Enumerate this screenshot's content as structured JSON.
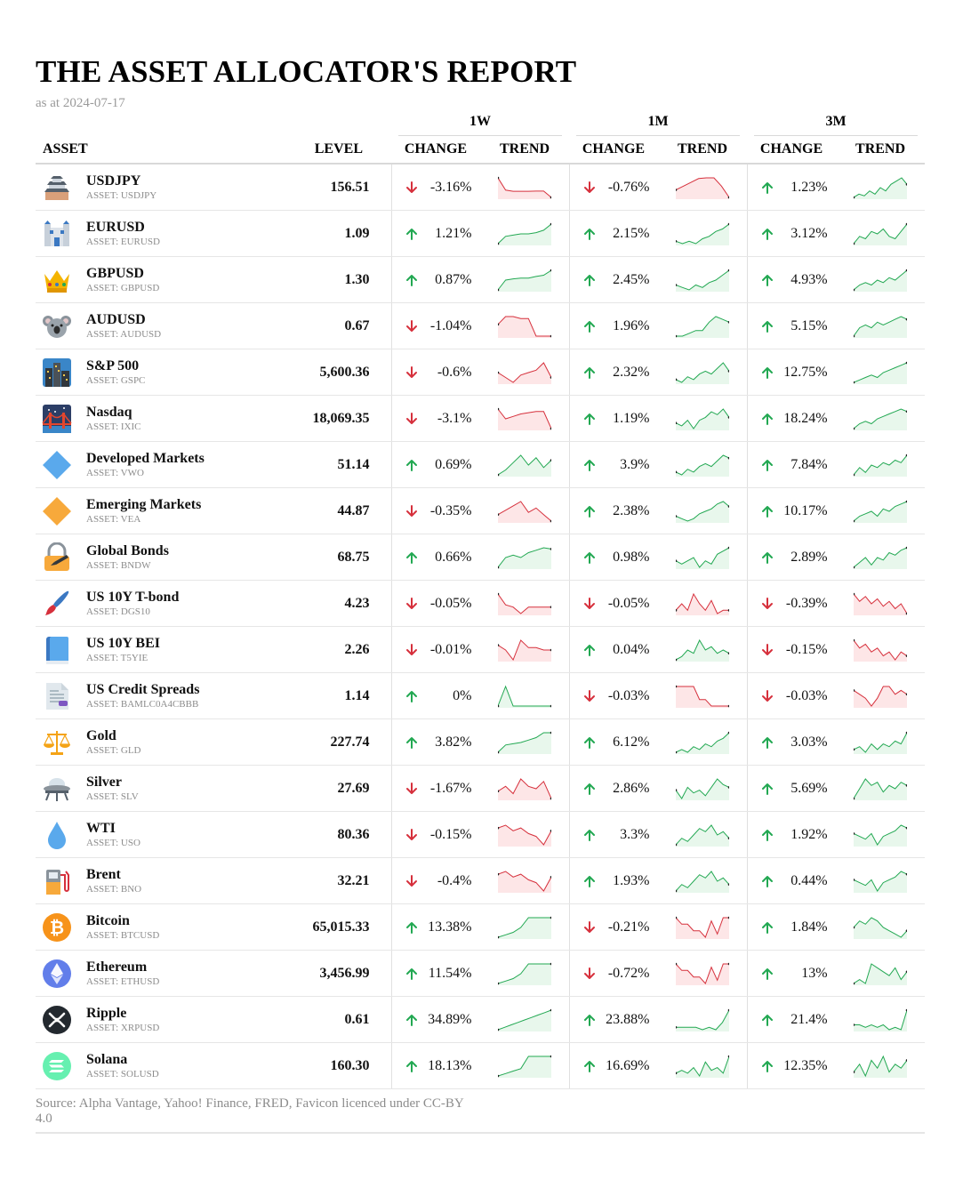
{
  "report": {
    "title": "THE ASSET ALLOCATOR'S REPORT",
    "subtitle": "as at 2024-07-17",
    "source": "Source: Alpha Vantage, Yahoo! Finance, FRED, Favicon licenced under CC-BY 4.0"
  },
  "columns": {
    "asset": "ASSET",
    "level": "LEVEL",
    "periods": [
      "1W",
      "1M",
      "3M"
    ],
    "change": "CHANGE",
    "trend": "TREND"
  },
  "colors": {
    "up": "#22a852",
    "up_fill": "#e8f7ec",
    "down": "#d6303c",
    "down_fill": "#fde6e7",
    "muted": "#8c8c8c"
  },
  "rows": [
    {
      "name": "USDJPY",
      "ticker": "ASSET: USDJPY",
      "icon": "japanese-castle-icon",
      "level": "156.51",
      "changes": [
        {
          "text": "-3.16%",
          "dir": "down"
        },
        {
          "text": "-0.76%",
          "dir": "down"
        },
        {
          "text": "1.23%",
          "dir": "up"
        }
      ],
      "trends": [
        [
          10,
          5,
          4.5,
          4.5,
          4.5,
          4.6,
          4.6,
          2
        ],
        [
          6,
          7,
          8,
          9,
          9.2,
          9.2,
          7,
          4
        ],
        [
          3,
          4,
          3.5,
          5,
          4,
          6,
          5,
          7,
          8,
          9,
          7
        ]
      ]
    },
    {
      "name": "EURUSD",
      "ticker": "ASSET: EURUSD",
      "icon": "european-castle-icon",
      "level": "1.09",
      "changes": [
        {
          "text": "1.21%",
          "dir": "up"
        },
        {
          "text": "2.15%",
          "dir": "up"
        },
        {
          "text": "3.12%",
          "dir": "up"
        }
      ],
      "trends": [
        [
          2,
          5,
          5.5,
          6,
          6,
          6.5,
          7.5,
          10
        ],
        [
          3,
          2,
          3,
          2,
          4,
          5,
          7,
          8,
          10
        ],
        [
          2,
          5,
          4,
          7,
          6,
          8,
          5,
          4,
          7,
          10
        ]
      ]
    },
    {
      "name": "GBPUSD",
      "ticker": "ASSET: GBPUSD",
      "icon": "crown-icon",
      "level": "1.30",
      "changes": [
        {
          "text": "0.87%",
          "dir": "up"
        },
        {
          "text": "2.45%",
          "dir": "up"
        },
        {
          "text": "4.93%",
          "dir": "up"
        }
      ],
      "trends": [
        [
          2,
          6,
          6.5,
          6.8,
          6.8,
          7.5,
          8,
          10
        ],
        [
          4,
          3,
          2,
          4,
          3,
          5,
          6,
          8,
          10
        ],
        [
          2,
          4,
          5,
          4,
          6,
          5,
          7,
          6,
          8,
          10
        ]
      ]
    },
    {
      "name": "AUDUSD",
      "ticker": "ASSET: AUDUSD",
      "icon": "koala-icon",
      "level": "0.67",
      "changes": [
        {
          "text": "-1.04%",
          "dir": "down"
        },
        {
          "text": "1.96%",
          "dir": "up"
        },
        {
          "text": "5.15%",
          "dir": "up"
        }
      ],
      "trends": [
        [
          8,
          10,
          10,
          9.5,
          9.5,
          5,
          5,
          5
        ],
        [
          3,
          3,
          4,
          5,
          5,
          8,
          10,
          9,
          8
        ],
        [
          2,
          5,
          6,
          5,
          7,
          6,
          7,
          8,
          9,
          8
        ]
      ]
    },
    {
      "name": "S&P 500",
      "ticker": "ASSET: GSPC",
      "icon": "night-city-icon",
      "level": "5,600.36",
      "changes": [
        {
          "text": "-0.6%",
          "dir": "down"
        },
        {
          "text": "2.32%",
          "dir": "up"
        },
        {
          "text": "12.75%",
          "dir": "up"
        }
      ],
      "trends": [
        [
          6,
          4,
          2,
          5,
          6,
          7,
          10,
          4
        ],
        [
          4,
          3,
          5,
          4,
          6,
          7,
          6,
          8,
          10,
          7
        ],
        [
          2,
          3,
          4,
          5,
          4,
          6,
          7,
          8,
          9,
          10
        ]
      ]
    },
    {
      "name": "Nasdaq",
      "ticker": "ASSET: IXIC",
      "icon": "bridge-night-icon",
      "level": "18,069.35",
      "changes": [
        {
          "text": "-3.1%",
          "dir": "down"
        },
        {
          "text": "1.19%",
          "dir": "up"
        },
        {
          "text": "18.24%",
          "dir": "up"
        }
      ],
      "trends": [
        [
          10,
          6,
          7,
          8,
          8.5,
          9,
          9,
          2
        ],
        [
          5,
          4,
          6,
          3,
          6,
          7,
          9,
          8,
          10,
          7
        ],
        [
          2,
          4,
          5,
          4,
          6,
          7,
          8,
          9,
          10,
          9
        ]
      ]
    },
    {
      "name": "Developed Markets",
      "ticker": "ASSET: VWO",
      "icon": "blue-diamond-icon",
      "level": "51.14",
      "changes": [
        {
          "text": "0.69%",
          "dir": "up"
        },
        {
          "text": "3.9%",
          "dir": "up"
        },
        {
          "text": "7.84%",
          "dir": "up"
        }
      ],
      "trends": [
        [
          2,
          4,
          7,
          10,
          6,
          9,
          5,
          8
        ],
        [
          3,
          2,
          4,
          3,
          5,
          6,
          5,
          7,
          9,
          8
        ],
        [
          2,
          5,
          3,
          6,
          5,
          7,
          6,
          8,
          7,
          10
        ]
      ]
    },
    {
      "name": "Emerging Markets",
      "ticker": "ASSET: VEA",
      "icon": "orange-diamond-icon",
      "level": "44.87",
      "changes": [
        {
          "text": "-0.35%",
          "dir": "down"
        },
        {
          "text": "2.38%",
          "dir": "up"
        },
        {
          "text": "10.17%",
          "dir": "up"
        }
      ],
      "trends": [
        [
          4,
          6,
          8,
          10,
          5,
          7,
          4,
          1
        ],
        [
          4,
          3,
          2,
          3,
          5,
          6,
          7,
          9,
          10,
          8
        ],
        [
          2,
          4,
          5,
          6,
          4,
          7,
          6,
          8,
          9,
          10
        ]
      ]
    },
    {
      "name": "Global Bonds",
      "ticker": "ASSET: BNDW",
      "icon": "lock-pen-icon",
      "level": "68.75",
      "changes": [
        {
          "text": "0.66%",
          "dir": "up"
        },
        {
          "text": "0.98%",
          "dir": "up"
        },
        {
          "text": "2.89%",
          "dir": "up"
        }
      ],
      "trends": [
        [
          2,
          6,
          7,
          6,
          8,
          9,
          10,
          9.5
        ],
        [
          6,
          5,
          6,
          7,
          4,
          6,
          5,
          8,
          9,
          10
        ],
        [
          2,
          4,
          6,
          3,
          6,
          5,
          8,
          7,
          9,
          10
        ]
      ]
    },
    {
      "name": "US 10Y T-bond",
      "ticker": "ASSET: DGS10",
      "icon": "paintbrush-icon",
      "level": "4.23",
      "changes": [
        {
          "text": "-0.05%",
          "dir": "down"
        },
        {
          "text": "-0.05%",
          "dir": "down"
        },
        {
          "text": "-0.39%",
          "dir": "down"
        }
      ],
      "trends": [
        [
          10,
          5,
          4,
          1,
          4,
          4,
          4,
          4
        ],
        [
          4,
          6,
          4,
          9,
          6,
          4,
          7,
          3,
          4,
          4
        ],
        [
          10,
          7,
          9,
          6,
          8,
          5,
          7,
          4,
          6,
          2
        ]
      ]
    },
    {
      "name": "US 10Y BEI",
      "ticker": "ASSET: T5YIE",
      "icon": "blue-book-icon",
      "level": "2.26",
      "changes": [
        {
          "text": "-0.01%",
          "dir": "down"
        },
        {
          "text": "0.04%",
          "dir": "up"
        },
        {
          "text": "-0.15%",
          "dir": "down"
        }
      ],
      "trends": [
        [
          8,
          6,
          2,
          10,
          7,
          7,
          6,
          6
        ],
        [
          3,
          4,
          6,
          5,
          9,
          6,
          7,
          5,
          6,
          5
        ],
        [
          9,
          7,
          8,
          6,
          7,
          5,
          6,
          4,
          6,
          5
        ]
      ]
    },
    {
      "name": "US Credit Spreads",
      "ticker": "ASSET: BAMLC0A4CBBB",
      "icon": "document-icon",
      "level": "1.14",
      "changes": [
        {
          "text": "0%",
          "dir": "up"
        },
        {
          "text": "-0.03%",
          "dir": "down"
        },
        {
          "text": "-0.03%",
          "dir": "down"
        }
      ],
      "trends": [
        [
          4,
          10,
          4,
          4,
          4,
          4,
          4,
          4
        ],
        [
          10,
          10,
          10,
          10,
          6,
          6,
          4,
          4,
          4,
          4
        ],
        [
          8,
          7,
          6,
          4,
          6,
          9,
          9,
          7,
          8,
          7
        ]
      ]
    },
    {
      "name": "Gold",
      "ticker": "ASSET: GLD",
      "icon": "balance-scale-icon",
      "level": "227.74",
      "changes": [
        {
          "text": "3.82%",
          "dir": "up"
        },
        {
          "text": "6.12%",
          "dir": "up"
        },
        {
          "text": "3.03%",
          "dir": "up"
        }
      ],
      "trends": [
        [
          2,
          5,
          5.5,
          6,
          7,
          8,
          10,
          10
        ],
        [
          3,
          4,
          3,
          5,
          4,
          6,
          5,
          7,
          8,
          10
        ],
        [
          4,
          5,
          3,
          6,
          4,
          6,
          5,
          7,
          6,
          10
        ]
      ]
    },
    {
      "name": "Silver",
      "ticker": "ASSET: SLV",
      "icon": "ufo-icon",
      "level": "27.69",
      "changes": [
        {
          "text": "-1.67%",
          "dir": "down"
        },
        {
          "text": "2.86%",
          "dir": "up"
        },
        {
          "text": "5.69%",
          "dir": "up"
        }
      ],
      "trends": [
        [
          5,
          7,
          4,
          10,
          7,
          6,
          9,
          2
        ],
        [
          6,
          3,
          7,
          5,
          6,
          4,
          7,
          10,
          8,
          7
        ],
        [
          3,
          6,
          9,
          7,
          8,
          5,
          7,
          6,
          8,
          7
        ]
      ]
    },
    {
      "name": "WTI",
      "ticker": "ASSET: USO",
      "icon": "droplet-icon",
      "level": "80.36",
      "changes": [
        {
          "text": "-0.15%",
          "dir": "down"
        },
        {
          "text": "3.3%",
          "dir": "up"
        },
        {
          "text": "1.92%",
          "dir": "up"
        }
      ],
      "trends": [
        [
          8,
          9,
          7,
          8,
          6,
          5,
          2,
          7
        ],
        [
          3,
          5,
          4,
          6,
          8,
          7,
          9,
          6,
          7,
          5
        ],
        [
          7,
          6,
          5,
          7,
          3,
          6,
          7,
          8,
          10,
          9
        ]
      ]
    },
    {
      "name": "Brent",
      "ticker": "ASSET: BNO",
      "icon": "fuel-pump-icon",
      "level": "32.21",
      "changes": [
        {
          "text": "-0.4%",
          "dir": "down"
        },
        {
          "text": "1.93%",
          "dir": "up"
        },
        {
          "text": "0.44%",
          "dir": "up"
        }
      ],
      "trends": [
        [
          8,
          9,
          7,
          8,
          6,
          5,
          2,
          7
        ],
        [
          3,
          5,
          4,
          6,
          8,
          7,
          9,
          6,
          7,
          5
        ],
        [
          7,
          6,
          5,
          7,
          3,
          6,
          7,
          8,
          10,
          9
        ]
      ]
    },
    {
      "name": "Bitcoin",
      "ticker": "ASSET: BTCUSD",
      "icon": "bitcoin-icon",
      "level": "65,015.33",
      "changes": [
        {
          "text": "13.38%",
          "dir": "up"
        },
        {
          "text": "-0.21%",
          "dir": "down"
        },
        {
          "text": "1.84%",
          "dir": "up"
        }
      ],
      "trends": [
        [
          2,
          3,
          4,
          6,
          10,
          10,
          10,
          10
        ],
        [
          8,
          6,
          6,
          4,
          4,
          2,
          7,
          3,
          8,
          8
        ],
        [
          5,
          7,
          6,
          8,
          7,
          5,
          4,
          3,
          2,
          4
        ]
      ]
    },
    {
      "name": "Ethereum",
      "ticker": "ASSET: ETHUSD",
      "icon": "ethereum-icon",
      "level": "3,456.99",
      "changes": [
        {
          "text": "11.54%",
          "dir": "up"
        },
        {
          "text": "-0.72%",
          "dir": "down"
        },
        {
          "text": "13%",
          "dir": "up"
        }
      ],
      "trends": [
        [
          2,
          3,
          4,
          6,
          10,
          10,
          10,
          10
        ],
        [
          8,
          6,
          6,
          4,
          4,
          2,
          7,
          3,
          8,
          8
        ],
        [
          3,
          4,
          3,
          8,
          7,
          6,
          5,
          7,
          4,
          6
        ]
      ]
    },
    {
      "name": "Ripple",
      "ticker": "ASSET: XRPUSD",
      "icon": "ripple-icon",
      "level": "0.61",
      "changes": [
        {
          "text": "34.89%",
          "dir": "up"
        },
        {
          "text": "23.88%",
          "dir": "up"
        },
        {
          "text": "21.4%",
          "dir": "up"
        }
      ],
      "trends": [
        [
          2,
          3,
          4,
          5,
          6,
          7,
          8,
          9,
          10
        ],
        [
          3,
          3,
          3,
          3,
          2,
          3,
          2,
          5,
          10
        ],
        [
          4,
          4,
          3,
          4,
          3,
          4,
          2,
          3,
          2,
          10
        ]
      ]
    },
    {
      "name": "Solana",
      "ticker": "ASSET: SOLUSD",
      "icon": "solana-icon",
      "level": "160.30",
      "changes": [
        {
          "text": "18.13%",
          "dir": "up"
        },
        {
          "text": "16.69%",
          "dir": "up"
        },
        {
          "text": "12.35%",
          "dir": "up"
        }
      ],
      "trends": [
        [
          2,
          3,
          4,
          5,
          10,
          10,
          10,
          10
        ],
        [
          3,
          4,
          3,
          5,
          2,
          7,
          4,
          5,
          3,
          9
        ],
        [
          4,
          6,
          3,
          7,
          5,
          8,
          4,
          6,
          5,
          7
        ]
      ]
    }
  ]
}
